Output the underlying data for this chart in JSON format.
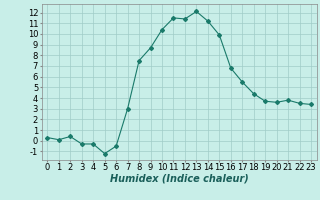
{
  "x": [
    0,
    1,
    2,
    3,
    4,
    5,
    6,
    7,
    8,
    9,
    10,
    11,
    12,
    13,
    14,
    15,
    16,
    17,
    18,
    19,
    20,
    21,
    22,
    23
  ],
  "y": [
    0.3,
    0.1,
    0.4,
    -0.3,
    -0.3,
    -1.2,
    -0.5,
    3.0,
    7.5,
    8.7,
    10.4,
    11.5,
    11.4,
    12.1,
    11.2,
    9.9,
    6.8,
    5.5,
    4.4,
    3.7,
    3.6,
    3.8,
    3.5,
    3.4
  ],
  "line_color": "#1a7a6a",
  "marker": "D",
  "marker_size": 2,
  "bg_color": "#c8eee8",
  "grid_color": "#a0ccc8",
  "xlabel": "Humidex (Indice chaleur)",
  "xlabel_style": "italic",
  "xlabel_fontsize": 7,
  "tick_fontsize": 6,
  "ylim": [
    -1.8,
    12.8
  ],
  "xlim": [
    -0.5,
    23.5
  ],
  "yticks": [
    -1,
    0,
    1,
    2,
    3,
    4,
    5,
    6,
    7,
    8,
    9,
    10,
    11,
    12
  ],
  "xticks": [
    0,
    1,
    2,
    3,
    4,
    5,
    6,
    7,
    8,
    9,
    10,
    11,
    12,
    13,
    14,
    15,
    16,
    17,
    18,
    19,
    20,
    21,
    22,
    23
  ]
}
